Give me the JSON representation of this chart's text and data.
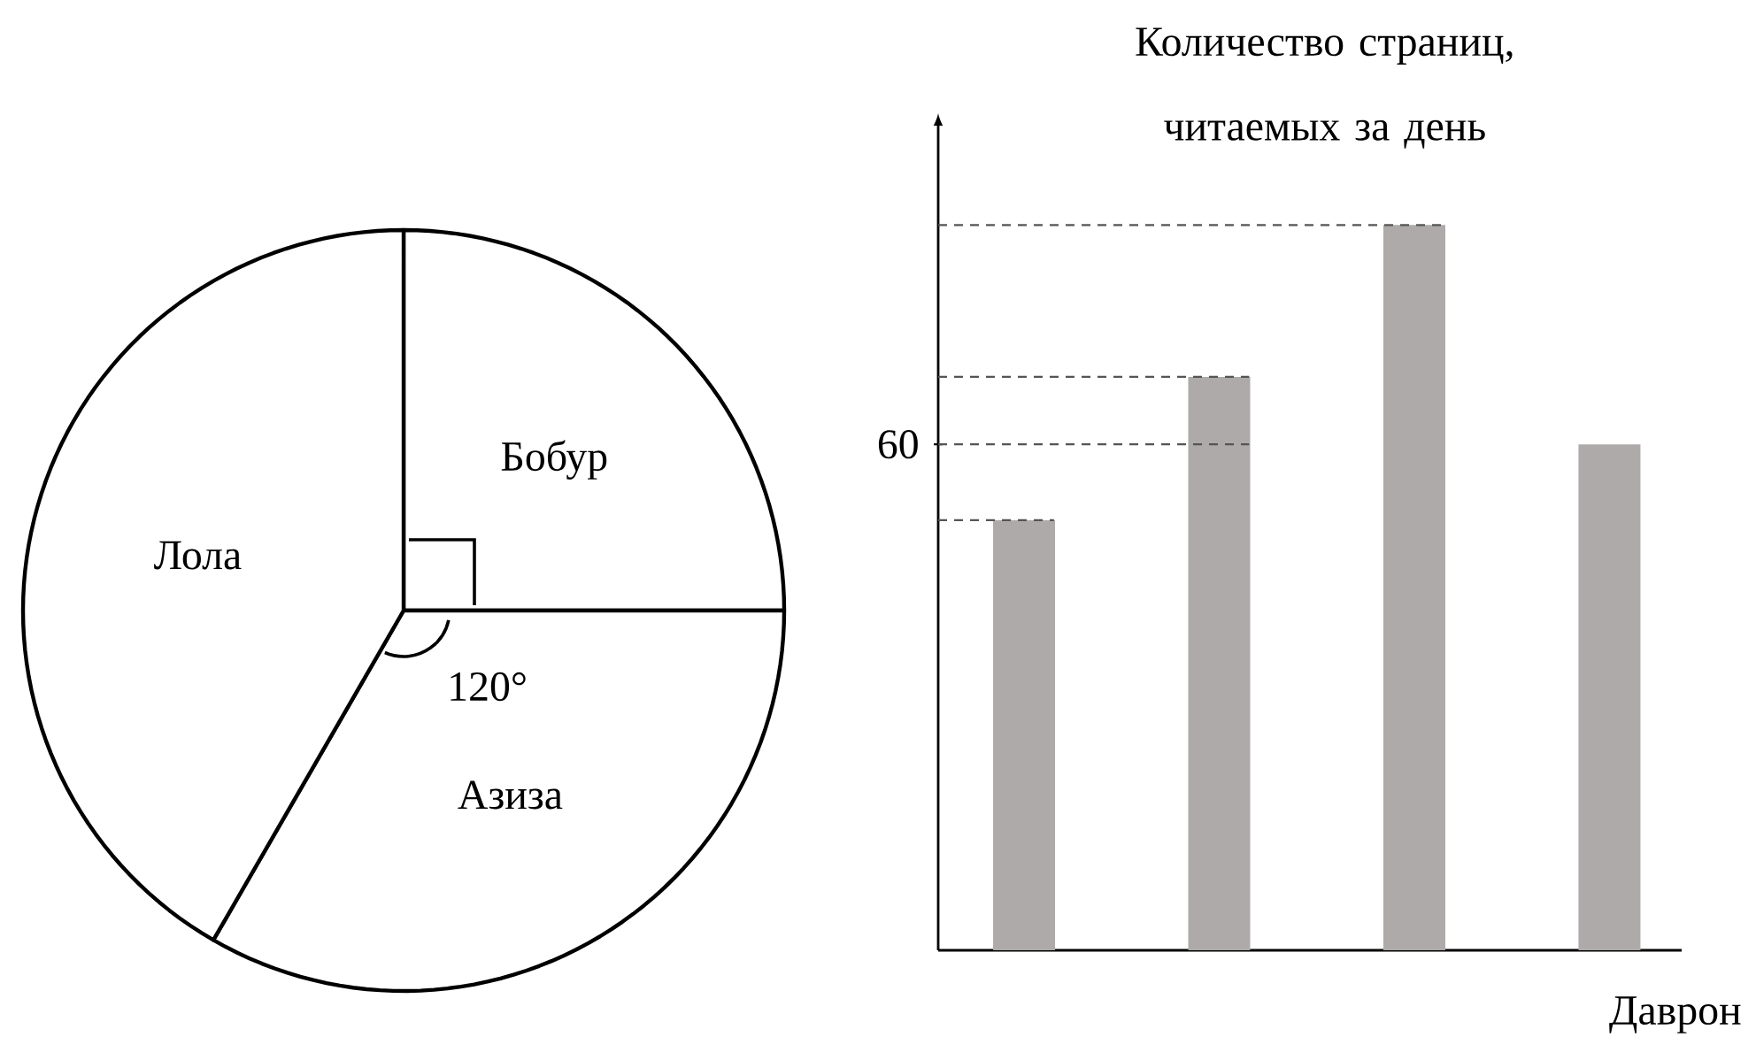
{
  "chart_data": [
    {
      "type": "pie",
      "categories": [
        "Бобур",
        "Азиза",
        "Лола"
      ],
      "values": [
        25,
        33.33,
        41.67
      ],
      "colors": [
        "#ffffff",
        "#ffffff",
        "#ffffff"
      ],
      "annotations": [
        "120°"
      ]
    },
    {
      "type": "bar",
      "categories": [
        null,
        null,
        null,
        null
      ],
      "values": [
        51,
        68,
        86,
        60
      ],
      "color": "#aeaaaa",
      "ylabel": "Количество страниц, читаемых за день",
      "xlabel": "Даврон",
      "ylim": [
        0,
        98
      ],
      "yticks": [
        60
      ],
      "ref_lines": [
        {
          "axis": "y",
          "value": 51,
          "line_style": "dashed",
          "color": "#555555"
        },
        {
          "axis": "y",
          "value": 68,
          "line_style": "dashed",
          "color": "#555555"
        },
        {
          "axis": "y",
          "value": 86,
          "line_style": "dashed",
          "color": "#555555"
        },
        {
          "axis": "y",
          "value": 60,
          "line_style": "dashed",
          "color": "#555555"
        }
      ]
    }
  ]
}
